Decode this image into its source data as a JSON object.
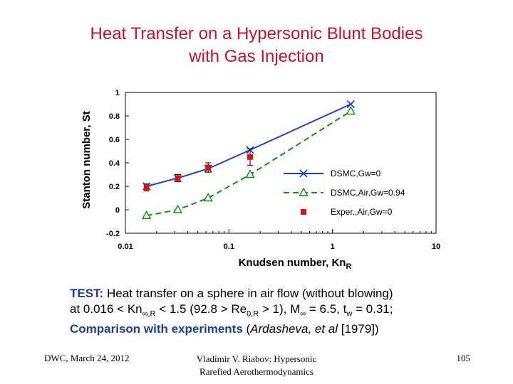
{
  "slide": {
    "title_line1": "Heat Transfer on a Hypersonic Blunt Bodies",
    "title_line2": "with Gas Injection",
    "test_label": "TEST:",
    "test_line1_rest": " Heat transfer on a sphere in air flow (without blowing)",
    "test_line2_a": "at 0.016 < Kn",
    "test_line2_sub1": "∞,R",
    "test_line2_b": " < 1.5 (92.8 > Re",
    "test_line2_sub2": "0,R",
    "test_line2_c": " > 1), M",
    "test_line2_sub3": "∞",
    "test_line2_d": " = 6.5, t",
    "test_line2_sub4": "w",
    "test_line2_e": " = 0.31;",
    "comparison_label": "Comparison with experiments",
    "comparison_a": " (",
    "comparison_author": "Ardasheva, et al",
    "comparison_b": " [1979])",
    "footer_left": "DWC, March 24, 2012",
    "footer_center_line1": "Vladimir V. Riabov: Hypersonic",
    "footer_center_line2": "Rarefied Aerothermodynamics",
    "footer_right": "105"
  },
  "colors": {
    "title": "#c0162c",
    "dsmc_gw0": "#2040c0",
    "dsmc_air": "#1a8a1a",
    "experiment": "#e01010"
  },
  "chart_data": {
    "type": "line",
    "x_scale": "log",
    "xlabel": "Knudsen number, Kn",
    "xlabel_sub": "R",
    "ylabel": "Stanton number, St",
    "xlim": [
      0.01,
      10
    ],
    "ylim": [
      -0.2,
      1
    ],
    "x_ticks": [
      0.01,
      0.1,
      1,
      10
    ],
    "x_tick_labels": [
      "0.01",
      "0.1",
      "1",
      "10"
    ],
    "y_ticks": [
      -0.2,
      0,
      0.2,
      0.4,
      0.6,
      0.8,
      1
    ],
    "y_tick_labels": [
      "-0.2",
      "0",
      "0.2",
      "0.4",
      "0.6",
      "0.8",
      "1"
    ],
    "legend_position": "bottom-right",
    "series": [
      {
        "name": "DSMC,Gw=0",
        "style": "solid",
        "marker": "x",
        "x": [
          0.016,
          0.032,
          0.063,
          0.16,
          1.5
        ],
        "y": [
          0.2,
          0.27,
          0.35,
          0.51,
          0.9
        ]
      },
      {
        "name": "DSMC,Air,Gw=0.94",
        "style": "dashed",
        "marker": "triangle",
        "x": [
          0.016,
          0.032,
          0.063,
          0.16,
          1.5
        ],
        "y": [
          -0.05,
          0.0,
          0.1,
          0.3,
          0.84
        ]
      },
      {
        "name": "Exper.,Air,Gw=0",
        "style": "none",
        "marker": "square",
        "x": [
          0.016,
          0.032,
          0.063,
          0.16
        ],
        "y": [
          0.19,
          0.27,
          0.36,
          0.45
        ],
        "error": [
          0.03,
          0.03,
          0.04,
          0.07
        ]
      }
    ]
  }
}
